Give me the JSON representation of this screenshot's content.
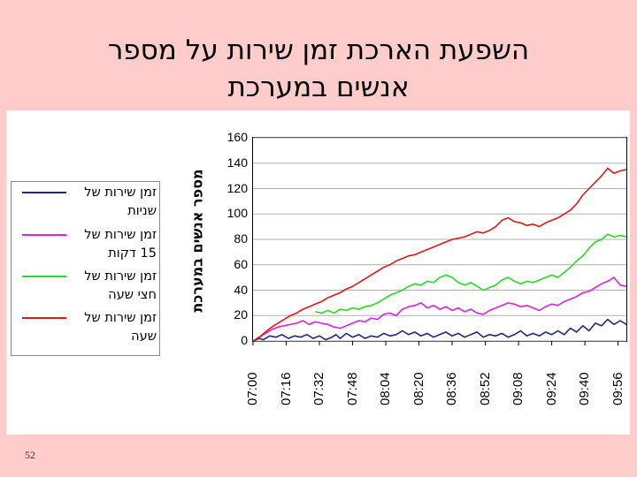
{
  "slide": {
    "title_line1": "השפעת הארכת זמן שירות על מספר",
    "title_line2": "אנשים במערכת",
    "page_number": "52"
  },
  "chart_data": {
    "type": "line",
    "ylabel": "מספר אנשים במערכת",
    "xlabel": "",
    "ylim": [
      0,
      160
    ],
    "yticks": [
      "0",
      "20",
      "40",
      "60",
      "80",
      "100",
      "120",
      "140",
      "160"
    ],
    "xticks": [
      "07:00",
      "07:16",
      "07:32",
      "07:48",
      "08:04",
      "08:20",
      "08:36",
      "08:52",
      "09:08",
      "09:24",
      "09:40",
      "09:56"
    ],
    "x_start": "07:00",
    "x_end": "10:00",
    "grid": "horizontal",
    "legend_position": "left",
    "series": [
      {
        "name": "זמן שירות של שניות",
        "color": "#1f2a7a",
        "points": [
          [
            "07:00",
            0
          ],
          [
            "07:03",
            2
          ],
          [
            "07:05",
            1
          ],
          [
            "07:08",
            4
          ],
          [
            "07:11",
            3
          ],
          [
            "07:14",
            5
          ],
          [
            "07:17",
            2
          ],
          [
            "07:20",
            4
          ],
          [
            "07:23",
            3
          ],
          [
            "07:26",
            5
          ],
          [
            "07:29",
            2
          ],
          [
            "07:32",
            4
          ],
          [
            "07:35",
            1
          ],
          [
            "07:38",
            3
          ],
          [
            "07:40",
            5
          ],
          [
            "07:42",
            2
          ],
          [
            "07:45",
            6
          ],
          [
            "07:48",
            3
          ],
          [
            "07:51",
            5
          ],
          [
            "07:54",
            2
          ],
          [
            "07:57",
            4
          ],
          [
            "08:00",
            3
          ],
          [
            "08:03",
            6
          ],
          [
            "08:06",
            4
          ],
          [
            "08:09",
            5
          ],
          [
            "08:12",
            8
          ],
          [
            "08:15",
            5
          ],
          [
            "08:18",
            7
          ],
          [
            "08:21",
            4
          ],
          [
            "08:24",
            6
          ],
          [
            "08:27",
            3
          ],
          [
            "08:30",
            5
          ],
          [
            "08:33",
            7
          ],
          [
            "08:36",
            4
          ],
          [
            "08:39",
            6
          ],
          [
            "08:42",
            3
          ],
          [
            "08:45",
            5
          ],
          [
            "08:48",
            7
          ],
          [
            "08:51",
            3
          ],
          [
            "08:54",
            5
          ],
          [
            "08:57",
            4
          ],
          [
            "09:00",
            6
          ],
          [
            "09:03",
            3
          ],
          [
            "09:06",
            5
          ],
          [
            "09:09",
            8
          ],
          [
            "09:12",
            4
          ],
          [
            "09:15",
            6
          ],
          [
            "09:18",
            4
          ],
          [
            "09:21",
            7
          ],
          [
            "09:24",
            5
          ],
          [
            "09:27",
            8
          ],
          [
            "09:30",
            5
          ],
          [
            "09:33",
            10
          ],
          [
            "09:36",
            7
          ],
          [
            "09:39",
            12
          ],
          [
            "09:42",
            8
          ],
          [
            "09:45",
            14
          ],
          [
            "09:48",
            12
          ],
          [
            "09:51",
            17
          ],
          [
            "09:54",
            13
          ],
          [
            "09:57",
            16
          ],
          [
            "10:00",
            13
          ]
        ]
      },
      {
        "name": "זמן שירות של 15 דקות",
        "color": "#e020e0",
        "points": [
          [
            "07:00",
            0
          ],
          [
            "07:03",
            3
          ],
          [
            "07:06",
            6
          ],
          [
            "07:09",
            9
          ],
          [
            "07:12",
            11
          ],
          [
            "07:15",
            12
          ],
          [
            "07:18",
            13
          ],
          [
            "07:21",
            14
          ],
          [
            "07:24",
            16
          ],
          [
            "07:27",
            13
          ],
          [
            "07:30",
            15
          ],
          [
            "07:33",
            14
          ],
          [
            "07:36",
            13
          ],
          [
            "07:39",
            11
          ],
          [
            "07:42",
            10
          ],
          [
            "07:45",
            12
          ],
          [
            "07:48",
            14
          ],
          [
            "07:51",
            16
          ],
          [
            "07:54",
            15
          ],
          [
            "07:57",
            18
          ],
          [
            "08:00",
            17
          ],
          [
            "08:03",
            21
          ],
          [
            "08:06",
            22
          ],
          [
            "08:09",
            20
          ],
          [
            "08:12",
            25
          ],
          [
            "08:15",
            27
          ],
          [
            "08:18",
            28
          ],
          [
            "08:21",
            30
          ],
          [
            "08:24",
            26
          ],
          [
            "08:27",
            28
          ],
          [
            "08:30",
            25
          ],
          [
            "08:33",
            27
          ],
          [
            "08:36",
            24
          ],
          [
            "08:39",
            26
          ],
          [
            "08:42",
            23
          ],
          [
            "08:45",
            25
          ],
          [
            "08:48",
            22
          ],
          [
            "08:51",
            21
          ],
          [
            "08:54",
            24
          ],
          [
            "08:57",
            26
          ],
          [
            "09:00",
            28
          ],
          [
            "09:03",
            30
          ],
          [
            "09:06",
            29
          ],
          [
            "09:09",
            27
          ],
          [
            "09:12",
            28
          ],
          [
            "09:15",
            26
          ],
          [
            "09:18",
            24
          ],
          [
            "09:21",
            27
          ],
          [
            "09:24",
            29
          ],
          [
            "09:27",
            28
          ],
          [
            "09:30",
            31
          ],
          [
            "09:33",
            33
          ],
          [
            "09:36",
            35
          ],
          [
            "09:39",
            38
          ],
          [
            "09:42",
            39
          ],
          [
            "09:45",
            42
          ],
          [
            "09:48",
            45
          ],
          [
            "09:51",
            47
          ],
          [
            "09:54",
            50
          ],
          [
            "09:57",
            44
          ],
          [
            "10:00",
            43
          ]
        ]
      },
      {
        "name": "זמן שירות של חצי שעה",
        "color": "#22dd22",
        "points": [
          [
            "07:30",
            23
          ],
          [
            "07:33",
            22
          ],
          [
            "07:36",
            24
          ],
          [
            "07:39",
            22
          ],
          [
            "07:42",
            25
          ],
          [
            "07:45",
            24
          ],
          [
            "07:48",
            26
          ],
          [
            "07:51",
            25
          ],
          [
            "07:54",
            27
          ],
          [
            "07:57",
            28
          ],
          [
            "08:00",
            30
          ],
          [
            "08:03",
            33
          ],
          [
            "08:06",
            36
          ],
          [
            "08:09",
            38
          ],
          [
            "08:12",
            40
          ],
          [
            "08:15",
            43
          ],
          [
            "08:18",
            45
          ],
          [
            "08:21",
            44
          ],
          [
            "08:24",
            47
          ],
          [
            "08:27",
            46
          ],
          [
            "08:30",
            50
          ],
          [
            "08:33",
            52
          ],
          [
            "08:36",
            50
          ],
          [
            "08:39",
            46
          ],
          [
            "08:42",
            44
          ],
          [
            "08:45",
            46
          ],
          [
            "08:48",
            43
          ],
          [
            "08:51",
            40
          ],
          [
            "08:54",
            42
          ],
          [
            "08:57",
            44
          ],
          [
            "09:00",
            48
          ],
          [
            "09:03",
            50
          ],
          [
            "09:06",
            47
          ],
          [
            "09:09",
            45
          ],
          [
            "09:12",
            47
          ],
          [
            "09:15",
            46
          ],
          [
            "09:18",
            48
          ],
          [
            "09:21",
            50
          ],
          [
            "09:24",
            52
          ],
          [
            "09:27",
            50
          ],
          [
            "09:30",
            54
          ],
          [
            "09:33",
            58
          ],
          [
            "09:36",
            63
          ],
          [
            "09:39",
            67
          ],
          [
            "09:42",
            73
          ],
          [
            "09:45",
            78
          ],
          [
            "09:48",
            80
          ],
          [
            "09:51",
            84
          ],
          [
            "09:54",
            82
          ],
          [
            "09:57",
            83
          ],
          [
            "10:00",
            82
          ]
        ]
      },
      {
        "name": "זמן שירות של שעה",
        "color": "#e01818",
        "points": [
          [
            "07:00",
            0
          ],
          [
            "07:03",
            3
          ],
          [
            "07:06",
            7
          ],
          [
            "07:09",
            11
          ],
          [
            "07:12",
            14
          ],
          [
            "07:15",
            17
          ],
          [
            "07:18",
            20
          ],
          [
            "07:21",
            22
          ],
          [
            "07:24",
            25
          ],
          [
            "07:27",
            27
          ],
          [
            "07:30",
            29
          ],
          [
            "07:33",
            31
          ],
          [
            "07:36",
            34
          ],
          [
            "07:39",
            36
          ],
          [
            "07:42",
            38
          ],
          [
            "07:45",
            41
          ],
          [
            "07:48",
            43
          ],
          [
            "07:51",
            46
          ],
          [
            "07:54",
            49
          ],
          [
            "07:57",
            52
          ],
          [
            "08:00",
            55
          ],
          [
            "08:03",
            58
          ],
          [
            "08:06",
            60
          ],
          [
            "08:09",
            63
          ],
          [
            "08:12",
            65
          ],
          [
            "08:15",
            67
          ],
          [
            "08:18",
            68
          ],
          [
            "08:21",
            70
          ],
          [
            "08:24",
            72
          ],
          [
            "08:27",
            74
          ],
          [
            "08:30",
            76
          ],
          [
            "08:33",
            78
          ],
          [
            "08:36",
            80
          ],
          [
            "08:39",
            81
          ],
          [
            "08:42",
            82
          ],
          [
            "08:45",
            84
          ],
          [
            "08:48",
            86
          ],
          [
            "08:51",
            85
          ],
          [
            "08:54",
            87
          ],
          [
            "08:57",
            90
          ],
          [
            "09:00",
            95
          ],
          [
            "09:03",
            97
          ],
          [
            "09:06",
            94
          ],
          [
            "09:09",
            93
          ],
          [
            "09:12",
            91
          ],
          [
            "09:15",
            92
          ],
          [
            "09:18",
            90
          ],
          [
            "09:21",
            93
          ],
          [
            "09:24",
            95
          ],
          [
            "09:27",
            97
          ],
          [
            "09:30",
            100
          ],
          [
            "09:33",
            103
          ],
          [
            "09:36",
            108
          ],
          [
            "09:39",
            115
          ],
          [
            "09:42",
            120
          ],
          [
            "09:45",
            125
          ],
          [
            "09:48",
            130
          ],
          [
            "09:51",
            136
          ],
          [
            "09:54",
            132
          ],
          [
            "09:57",
            134
          ],
          [
            "10:00",
            135
          ]
        ]
      }
    ]
  }
}
